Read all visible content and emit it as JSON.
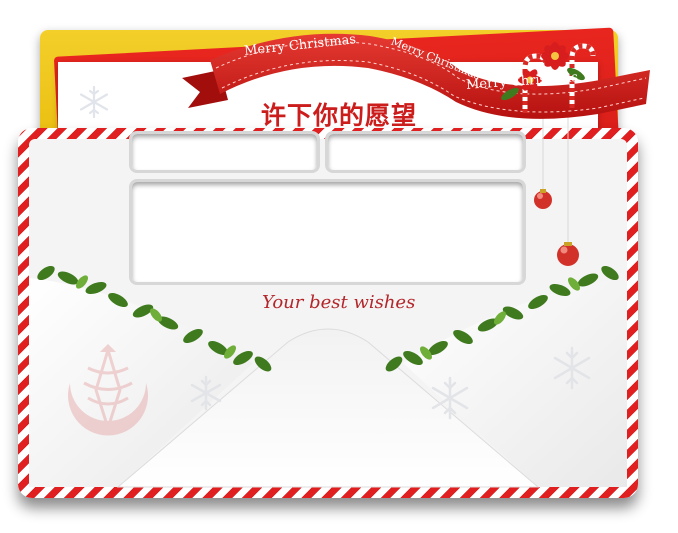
{
  "card": {
    "title": "许下你的愿望",
    "tagline": "Your best wishes"
  },
  "ribbon": {
    "text_1": "Merry Christmas",
    "text_2": "Merry Christmas",
    "text_3": "Merry Christmas"
  },
  "form": {
    "name_value": "",
    "phone_value": "",
    "wish_value": ""
  },
  "colors": {
    "accent_red": "#cc1d1d",
    "gold": "#e6b300",
    "holly_green": "#3f7a1f",
    "stripe_red": "#e02020"
  },
  "icons": {
    "snowflake": "snowflake-icon",
    "ornament": "ornament-icon",
    "poinsettia": "poinsettia-icon",
    "candy_cane": "candy-cane-icon",
    "holly": "holly-icon",
    "logo": "brand-logo"
  }
}
